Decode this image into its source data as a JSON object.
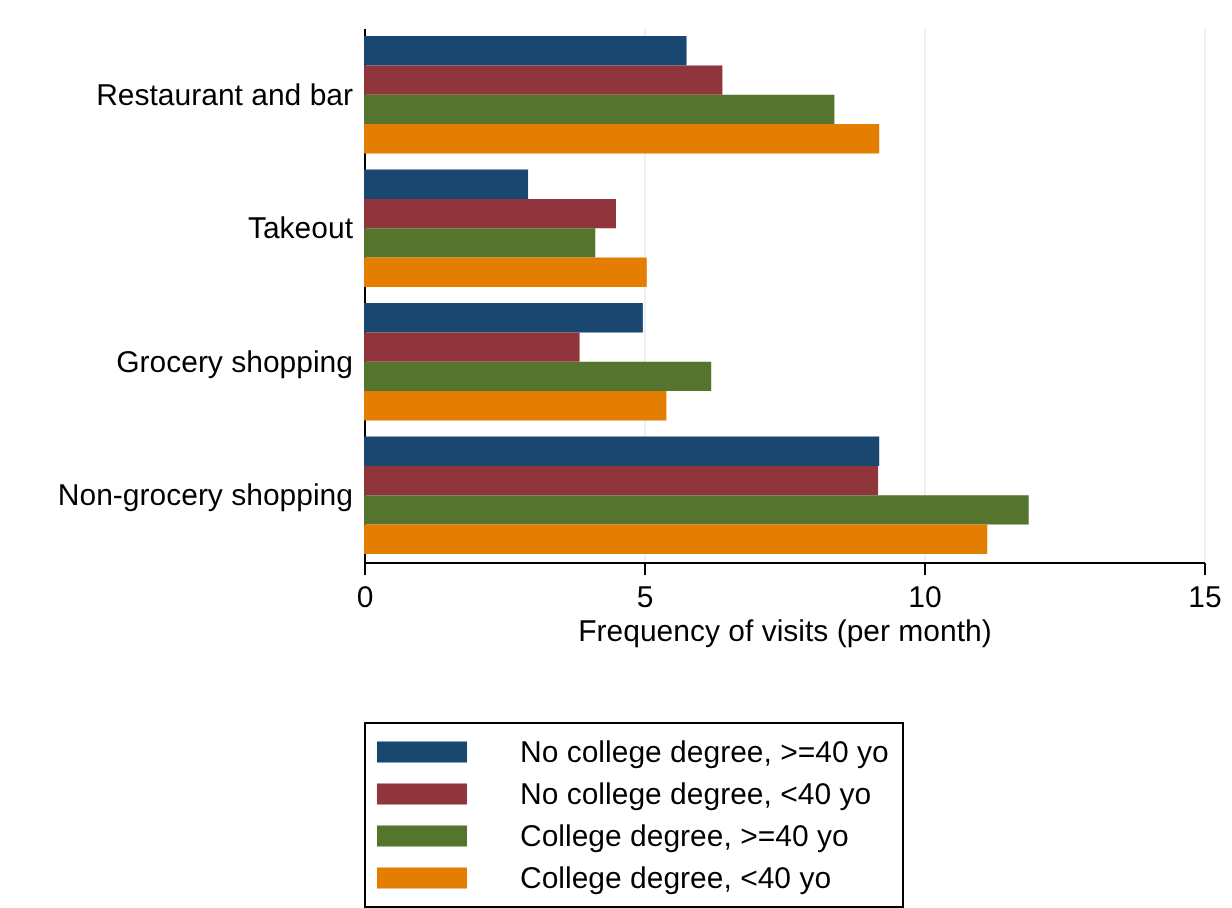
{
  "chart_data": {
    "type": "bar",
    "orientation": "horizontal",
    "categories": [
      "Restaurant and bar",
      "Takeout",
      "Grocery shopping",
      "Non-grocery shopping"
    ],
    "series": [
      {
        "name": "No college degree, >=40 yo",
        "color": "#1a476f",
        "values": [
          5.76,
          2.93,
          4.98,
          9.2
        ]
      },
      {
        "name": "No college degree, <40 yo",
        "color": "#90353b",
        "values": [
          6.4,
          4.5,
          3.85,
          9.18
        ]
      },
      {
        "name": "College degree, >=40 yo",
        "color": "#55752f",
        "values": [
          8.4,
          4.13,
          6.2,
          11.87
        ]
      },
      {
        "name": "College degree, <40 yo",
        "color": "#e37e00",
        "values": [
          9.2,
          5.05,
          5.4,
          11.13
        ]
      }
    ],
    "xlabel": "Frequency of visits (per month)",
    "xlim": [
      0,
      15
    ],
    "xticks": [
      0,
      5,
      10,
      15
    ],
    "grid": "x",
    "legend": "bottom"
  }
}
